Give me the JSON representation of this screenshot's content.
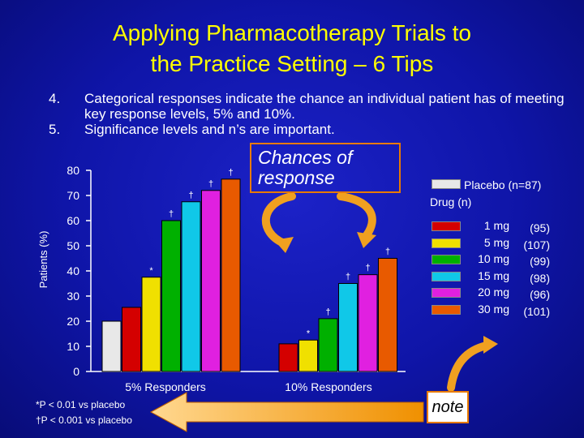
{
  "slide": {
    "title_line1": "Applying Pharmacotherapy Trials to",
    "title_line2": "the Practice Setting – 6 Tips",
    "tips": [
      {
        "num": "4.",
        "text": "Categorical responses indicate the chance an individual patient has of meeting key response levels, 5% and 10%."
      },
      {
        "num": "5.",
        "text": "Significance levels and n’s are important."
      }
    ],
    "callout": "Chances of response",
    "note": "note",
    "footnotes": [
      "*P < 0.01 vs placebo",
      "†P < 0.001 vs placebo"
    ]
  },
  "chart_data": {
    "type": "bar",
    "ylabel": "Patients (%)",
    "ylim": [
      0,
      80
    ],
    "yticks": [
      0,
      10,
      20,
      30,
      40,
      50,
      60,
      70,
      80
    ],
    "categories": [
      "5% Responders",
      "10% Responders"
    ],
    "legend": {
      "placebo_label": "Placebo (n=87)",
      "drug_header": "Drug (n)"
    },
    "series": [
      {
        "name": "Placebo",
        "n_label": "",
        "color": "#e8e8e8",
        "values": [
          20,
          0
        ],
        "marks": [
          "",
          ""
        ]
      },
      {
        "name": "1 mg",
        "n_label": "(95)",
        "color": "#d40000",
        "values": [
          25.5,
          11
        ],
        "marks": [
          "",
          ""
        ]
      },
      {
        "name": "5 mg",
        "n_label": "(107)",
        "color": "#f0e000",
        "values": [
          37.5,
          12.5
        ],
        "marks": [
          "*",
          "*"
        ]
      },
      {
        "name": "10 mg",
        "n_label": "(99)",
        "color": "#00b000",
        "values": [
          60,
          21
        ],
        "marks": [
          "†",
          "†"
        ]
      },
      {
        "name": "15 mg",
        "n_label": "(98)",
        "color": "#10c8e8",
        "values": [
          67.5,
          35
        ],
        "marks": [
          "†",
          "†"
        ]
      },
      {
        "name": "20 mg",
        "n_label": "(96)",
        "color": "#e020e0",
        "values": [
          72,
          38.5
        ],
        "marks": [
          "†",
          "†"
        ]
      },
      {
        "name": "30 mg",
        "n_label": "(101)",
        "color": "#e85a00",
        "values": [
          76.5,
          45
        ],
        "marks": [
          "†",
          "†"
        ]
      }
    ]
  }
}
